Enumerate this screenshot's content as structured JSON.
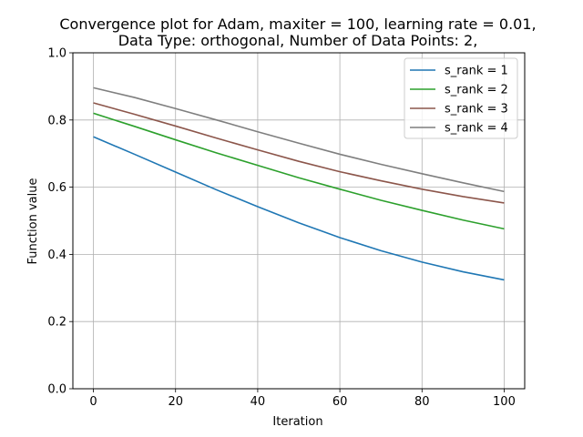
{
  "chart_data": {
    "type": "line",
    "title_line1": "Convergence plot for Adam, maxiter = 100, learning rate = 0.01,",
    "title_line2": "Data Type: orthogonal, Number of Data Points: 2,",
    "xlabel": "Iteration",
    "ylabel": "Function value",
    "xlim": [
      -5,
      105
    ],
    "ylim": [
      0.0,
      1.0
    ],
    "xticks": [
      0,
      20,
      40,
      60,
      80,
      100
    ],
    "xtick_labels": [
      "0",
      "20",
      "40",
      "60",
      "80",
      "100"
    ],
    "yticks": [
      0.0,
      0.2,
      0.4,
      0.6,
      0.8,
      1.0
    ],
    "ytick_labels": [
      "0.0",
      "0.2",
      "0.4",
      "0.6",
      "0.8",
      "1.0"
    ],
    "grid": true,
    "legend_position": "top-right",
    "x": [
      0,
      10,
      20,
      30,
      40,
      50,
      60,
      70,
      80,
      90,
      100
    ],
    "series": [
      {
        "name": "s_rank = 1",
        "color": "#1f77b4",
        "values": [
          0.75,
          0.698,
          0.645,
          0.592,
          0.542,
          0.494,
          0.45,
          0.411,
          0.377,
          0.348,
          0.324
        ]
      },
      {
        "name": "s_rank = 2",
        "color": "#2ca02c",
        "values": [
          0.82,
          0.781,
          0.741,
          0.702,
          0.665,
          0.628,
          0.594,
          0.561,
          0.531,
          0.502,
          0.476
        ]
      },
      {
        "name": "s_rank = 3",
        "color": "#8c564b",
        "values": [
          0.851,
          0.817,
          0.782,
          0.746,
          0.711,
          0.677,
          0.646,
          0.619,
          0.594,
          0.572,
          0.553
        ]
      },
      {
        "name": "s_rank = 4",
        "color": "#7f7f7f",
        "values": [
          0.896,
          0.867,
          0.834,
          0.8,
          0.765,
          0.731,
          0.698,
          0.668,
          0.64,
          0.613,
          0.587
        ]
      }
    ]
  }
}
